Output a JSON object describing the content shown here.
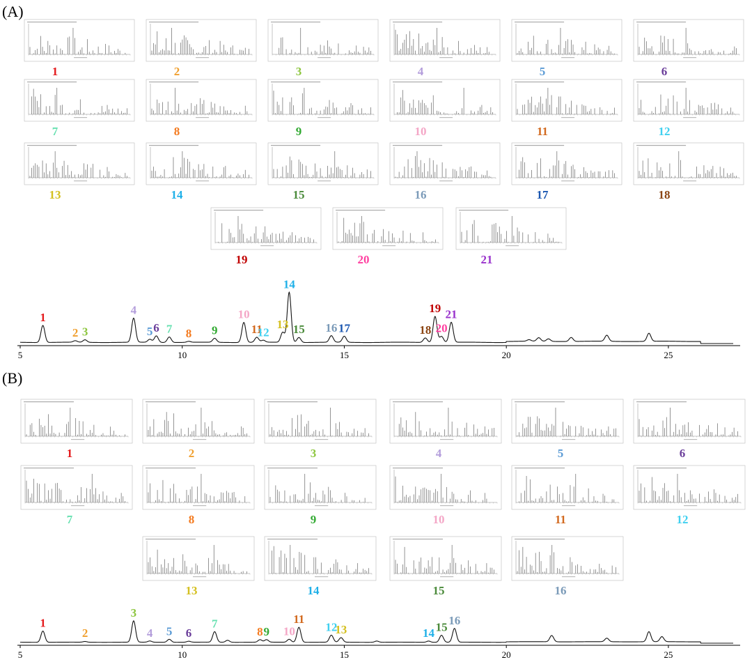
{
  "panels": [
    {
      "label": "(A)"
    },
    {
      "label": "(B)"
    }
  ],
  "colors": {
    "1": "#e41a1c",
    "2": "#f0a030",
    "3": "#8dc63f",
    "4": "#b39ddb",
    "5": "#5b9bd5",
    "6": "#6a3d9a",
    "7": "#66e0b0",
    "8": "#f47b20",
    "9": "#33aa33",
    "10": "#f4a6c6",
    "11": "#d2691e",
    "12": "#40d0f0",
    "13": "#d4c020",
    "14": "#1fb0e8",
    "15": "#4a8a3a",
    "16": "#7a9ab8",
    "17": "#1a56b0",
    "18": "#8b4513",
    "19": "#c00000",
    "20": "#ff3fa0",
    "21": "#9932cc"
  },
  "chart_data": [
    {
      "type": "line",
      "panel": "(A)",
      "xlim": [
        5,
        27
      ],
      "xticks": [
        5,
        10,
        15,
        20,
        25
      ],
      "baseline_end": 26,
      "peaks": [
        {
          "id": "1",
          "x": 5.7,
          "height": 0.34
        },
        {
          "id": "2",
          "x": 6.7,
          "height": 0.03
        },
        {
          "id": "3",
          "x": 7.0,
          "height": 0.05
        },
        {
          "id": "4",
          "x": 8.5,
          "height": 0.48
        },
        {
          "id": "5",
          "x": 9.0,
          "height": 0.06
        },
        {
          "id": "6",
          "x": 9.2,
          "height": 0.13
        },
        {
          "id": "7",
          "x": 9.6,
          "height": 0.11
        },
        {
          "id": "8",
          "x": 10.2,
          "height": 0.02
        },
        {
          "id": "9",
          "x": 11.0,
          "height": 0.08
        },
        {
          "id": "10",
          "x": 11.9,
          "height": 0.4
        },
        {
          "id": "11",
          "x": 12.3,
          "height": 0.1
        },
        {
          "id": "12",
          "x": 12.5,
          "height": 0.04
        },
        {
          "id": "13",
          "x": 13.1,
          "height": 0.2
        },
        {
          "id": "14",
          "x": 13.3,
          "height": 1.0
        },
        {
          "id": "15",
          "x": 13.6,
          "height": 0.1
        },
        {
          "id": "16",
          "x": 14.6,
          "height": 0.13
        },
        {
          "id": "17",
          "x": 15.0,
          "height": 0.12
        },
        {
          "id": "18",
          "x": 17.5,
          "height": 0.09
        },
        {
          "id": "19",
          "x": 17.8,
          "height": 0.52
        },
        {
          "id": "20",
          "x": 18.0,
          "height": 0.12
        },
        {
          "id": "21",
          "x": 18.3,
          "height": 0.4
        }
      ],
      "extra_peaks": [
        {
          "x": 20.7,
          "height": 0.03
        },
        {
          "x": 21.0,
          "height": 0.07
        },
        {
          "x": 21.3,
          "height": 0.05
        },
        {
          "x": 22.0,
          "height": 0.08
        },
        {
          "x": 23.1,
          "height": 0.12
        },
        {
          "x": 24.4,
          "height": 0.16
        }
      ],
      "mass_spectra": [
        {
          "id": "1"
        },
        {
          "id": "2"
        },
        {
          "id": "3"
        },
        {
          "id": "4"
        },
        {
          "id": "5"
        },
        {
          "id": "6"
        },
        {
          "id": "7"
        },
        {
          "id": "8"
        },
        {
          "id": "9"
        },
        {
          "id": "10"
        },
        {
          "id": "11"
        },
        {
          "id": "12"
        },
        {
          "id": "13"
        },
        {
          "id": "14"
        },
        {
          "id": "15"
        },
        {
          "id": "16"
        },
        {
          "id": "17"
        },
        {
          "id": "18"
        },
        {
          "id": "19"
        },
        {
          "id": "20"
        },
        {
          "id": "21"
        }
      ]
    },
    {
      "type": "line",
      "panel": "(B)",
      "xlim": [
        5,
        27
      ],
      "xticks": [
        5,
        10,
        15,
        20,
        25
      ],
      "baseline_end": 26,
      "peaks": [
        {
          "id": "1",
          "x": 5.7,
          "height": 0.45
        },
        {
          "id": "2",
          "x": 7.0,
          "height": 0.03
        },
        {
          "id": "3",
          "x": 8.5,
          "height": 0.85
        },
        {
          "id": "4",
          "x": 9.0,
          "height": 0.05
        },
        {
          "id": "5",
          "x": 9.6,
          "height": 0.12
        },
        {
          "id": "6",
          "x": 10.2,
          "height": 0.04
        },
        {
          "id": "7",
          "x": 11.0,
          "height": 0.42
        },
        {
          "id": "8",
          "x": 12.4,
          "height": 0.1
        },
        {
          "id": "9",
          "x": 12.6,
          "height": 0.1
        },
        {
          "id": "10",
          "x": 13.3,
          "height": 0.12
        },
        {
          "id": "11",
          "x": 13.6,
          "height": 0.6
        },
        {
          "id": "12",
          "x": 14.6,
          "height": 0.28
        },
        {
          "id": "13",
          "x": 14.9,
          "height": 0.18
        },
        {
          "id": "14",
          "x": 17.6,
          "height": 0.05
        },
        {
          "id": "15",
          "x": 18.0,
          "height": 0.28
        },
        {
          "id": "16",
          "x": 18.4,
          "height": 0.55
        }
      ],
      "extra_peaks": [
        {
          "x": 11.4,
          "height": 0.08
        },
        {
          "x": 16.0,
          "height": 0.05
        },
        {
          "x": 21.4,
          "height": 0.25
        },
        {
          "x": 23.1,
          "height": 0.14
        },
        {
          "x": 24.4,
          "height": 0.4
        },
        {
          "x": 24.8,
          "height": 0.2
        }
      ],
      "mass_spectra": [
        {
          "id": "1"
        },
        {
          "id": "2"
        },
        {
          "id": "3"
        },
        {
          "id": "4"
        },
        {
          "id": "5"
        },
        {
          "id": "6"
        },
        {
          "id": "7"
        },
        {
          "id": "8"
        },
        {
          "id": "9"
        },
        {
          "id": "10"
        },
        {
          "id": "11"
        },
        {
          "id": "12"
        },
        {
          "id": "13"
        },
        {
          "id": "14"
        },
        {
          "id": "15"
        },
        {
          "id": "16"
        }
      ]
    }
  ]
}
